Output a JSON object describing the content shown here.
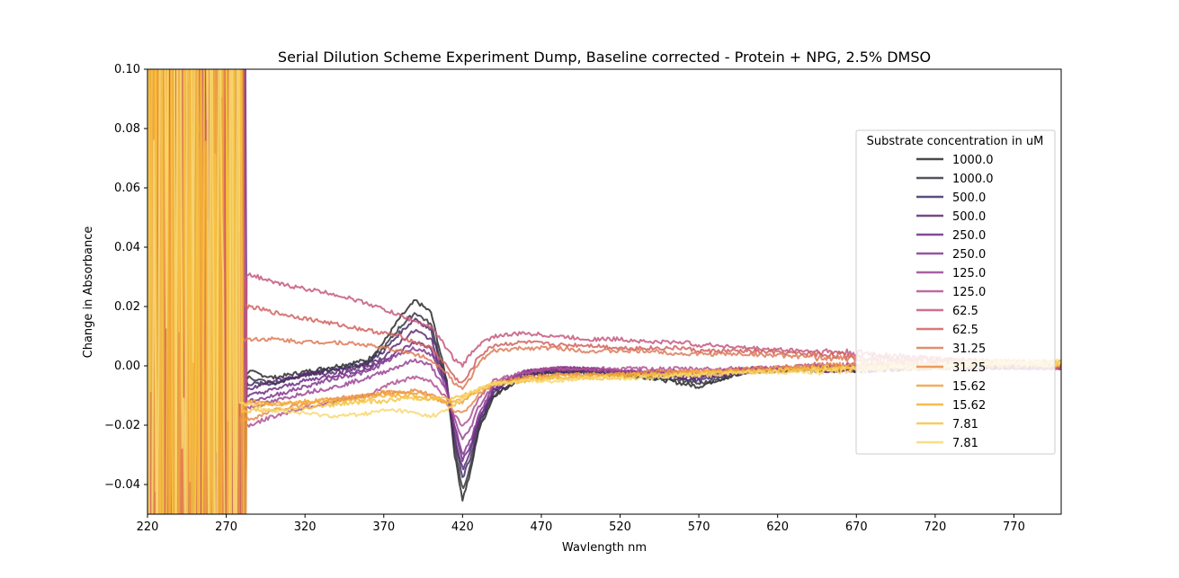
{
  "chart_data": {
    "type": "line",
    "title": "Serial Dilution Scheme Experiment Dump, Baseline corrected - Protein + NPG, 2.5% DMSO",
    "xlabel": "Wavlength nm",
    "ylabel": "Change in Absorbance",
    "xlim": [
      220,
      800
    ],
    "ylim": [
      -0.05,
      0.1
    ],
    "xticks": [
      220,
      270,
      320,
      370,
      420,
      470,
      520,
      570,
      620,
      670,
      720,
      770
    ],
    "yticks": [
      -0.04,
      -0.02,
      0.0,
      0.02,
      0.04,
      0.06,
      0.08,
      0.1
    ],
    "ytick_labels": [
      "−0.04",
      "−0.02",
      "0.00",
      "0.02",
      "0.04",
      "0.06",
      "0.08",
      "0.10"
    ],
    "legend_title": "Substrate concentration in uM",
    "legend_position": "right",
    "grid": false,
    "series": [
      {
        "name": "1000.0",
        "color": "#2a2a2a",
        "base": 0.0,
        "x": [
          285,
          300,
          320,
          340,
          360,
          370,
          380,
          390,
          400,
          410,
          415,
          420,
          425,
          430,
          440,
          460,
          480,
          500,
          520,
          540,
          560,
          570,
          580,
          600,
          640,
          680,
          720,
          760,
          800
        ],
        "y": [
          -0.002,
          -0.004,
          -0.002,
          0.0,
          0.002,
          0.008,
          0.016,
          0.022,
          0.018,
          -0.005,
          -0.03,
          -0.045,
          -0.036,
          -0.022,
          -0.01,
          -0.003,
          -0.002,
          -0.002,
          -0.003,
          -0.004,
          -0.006,
          -0.007,
          -0.005,
          -0.002,
          -0.001,
          -0.001,
          0.0,
          0.0,
          0.0
        ]
      },
      {
        "name": "1000.0",
        "color": "#3a3540",
        "base": 0.0,
        "x": [
          285,
          300,
          320,
          340,
          360,
          370,
          380,
          390,
          400,
          410,
          415,
          420,
          425,
          430,
          440,
          460,
          480,
          500,
          520,
          540,
          560,
          570,
          580,
          600,
          640,
          680,
          720,
          760,
          800
        ],
        "y": [
          -0.004,
          -0.006,
          -0.003,
          -0.001,
          0.001,
          0.006,
          0.013,
          0.018,
          0.014,
          -0.006,
          -0.028,
          -0.042,
          -0.034,
          -0.021,
          -0.01,
          -0.003,
          -0.002,
          -0.002,
          -0.003,
          -0.004,
          -0.005,
          -0.006,
          -0.005,
          -0.002,
          -0.001,
          -0.001,
          0.0,
          0.0,
          0.0
        ]
      },
      {
        "name": "500.0",
        "color": "#3e2f66",
        "base": 0.0,
        "x": [
          285,
          300,
          320,
          340,
          360,
          370,
          380,
          390,
          400,
          410,
          415,
          420,
          425,
          430,
          440,
          460,
          480,
          500,
          520,
          540,
          560,
          570,
          580,
          600,
          640,
          680,
          720,
          760,
          800
        ],
        "y": [
          -0.006,
          -0.006,
          -0.003,
          -0.001,
          0.001,
          0.005,
          0.011,
          0.016,
          0.012,
          -0.006,
          -0.025,
          -0.038,
          -0.031,
          -0.02,
          -0.009,
          -0.003,
          -0.002,
          -0.002,
          -0.003,
          -0.003,
          -0.004,
          -0.005,
          -0.004,
          -0.002,
          -0.001,
          -0.001,
          0.0,
          0.0,
          0.0
        ]
      },
      {
        "name": "500.0",
        "color": "#5a2a70",
        "base": 0.0,
        "x": [
          285,
          300,
          320,
          340,
          360,
          370,
          380,
          390,
          400,
          410,
          415,
          420,
          425,
          430,
          440,
          460,
          480,
          500,
          520,
          540,
          560,
          570,
          580,
          600,
          640,
          680,
          720,
          760,
          800
        ],
        "y": [
          -0.008,
          -0.005,
          -0.003,
          -0.002,
          0.0,
          0.003,
          0.008,
          0.012,
          0.009,
          -0.007,
          -0.024,
          -0.035,
          -0.029,
          -0.019,
          -0.008,
          -0.002,
          -0.001,
          -0.001,
          -0.002,
          -0.003,
          -0.004,
          -0.004,
          -0.003,
          -0.002,
          -0.001,
          -0.001,
          0.0,
          0.0,
          0.0
        ]
      },
      {
        "name": "250.0",
        "color": "#6c2b86",
        "base": 0.0,
        "x": [
          285,
          300,
          320,
          340,
          360,
          370,
          380,
          390,
          400,
          410,
          415,
          420,
          425,
          430,
          440,
          460,
          480,
          500,
          520,
          540,
          560,
          570,
          580,
          600,
          640,
          680,
          720,
          760,
          800
        ],
        "y": [
          -0.01,
          -0.008,
          -0.005,
          -0.003,
          -0.001,
          0.002,
          0.005,
          0.008,
          0.006,
          -0.007,
          -0.021,
          -0.032,
          -0.027,
          -0.018,
          -0.008,
          -0.002,
          -0.001,
          -0.001,
          -0.002,
          -0.002,
          -0.003,
          -0.003,
          -0.003,
          -0.002,
          -0.001,
          -0.001,
          0.0,
          0.0,
          0.0
        ]
      },
      {
        "name": "250.0",
        "color": "#83378f",
        "base": 0.0,
        "x": [
          285,
          300,
          320,
          340,
          360,
          370,
          380,
          390,
          400,
          410,
          415,
          420,
          425,
          430,
          440,
          460,
          480,
          500,
          520,
          540,
          560,
          570,
          580,
          600,
          640,
          680,
          720,
          760,
          800
        ],
        "y": [
          -0.012,
          -0.01,
          -0.007,
          -0.004,
          -0.002,
          0.001,
          0.004,
          0.006,
          0.004,
          -0.008,
          -0.02,
          -0.03,
          -0.025,
          -0.017,
          -0.007,
          -0.002,
          -0.001,
          -0.001,
          -0.002,
          -0.002,
          -0.003,
          -0.003,
          -0.002,
          -0.001,
          -0.001,
          0.0,
          0.0,
          0.0,
          0.0
        ]
      },
      {
        "name": "125.0",
        "color": "#9a4494",
        "base": 0.0,
        "x": [
          285,
          300,
          320,
          340,
          360,
          370,
          380,
          390,
          400,
          410,
          415,
          420,
          425,
          430,
          440,
          460,
          480,
          500,
          520,
          540,
          560,
          570,
          580,
          600,
          640,
          680,
          720,
          760,
          800
        ],
        "y": [
          -0.014,
          -0.012,
          -0.009,
          -0.007,
          -0.004,
          -0.002,
          0.0,
          0.002,
          0.0,
          -0.009,
          -0.018,
          -0.025,
          -0.021,
          -0.014,
          -0.006,
          -0.002,
          -0.001,
          -0.001,
          -0.002,
          -0.002,
          -0.002,
          -0.002,
          -0.002,
          -0.001,
          -0.001,
          0.0,
          0.0,
          0.0,
          0.0
        ]
      },
      {
        "name": "125.0",
        "color": "#b15294",
        "base": 0.0,
        "x": [
          285,
          300,
          320,
          340,
          360,
          370,
          380,
          390,
          400,
          410,
          415,
          420,
          425,
          430,
          440,
          460,
          480,
          500,
          520,
          540,
          560,
          570,
          580,
          600,
          640,
          680,
          720,
          760,
          800
        ],
        "y": [
          -0.02,
          -0.017,
          -0.014,
          -0.012,
          -0.01,
          -0.007,
          -0.005,
          -0.004,
          -0.005,
          -0.011,
          -0.017,
          -0.02,
          -0.017,
          -0.011,
          -0.005,
          -0.002,
          -0.001,
          -0.001,
          -0.001,
          -0.001,
          -0.001,
          -0.001,
          -0.001,
          -0.001,
          0.0,
          0.0,
          0.0,
          0.0,
          0.0
        ]
      },
      {
        "name": "62.5",
        "color": "#c4587e",
        "base": 0.0,
        "x": [
          285,
          300,
          320,
          340,
          360,
          370,
          380,
          390,
          400,
          410,
          415,
          420,
          425,
          430,
          440,
          460,
          480,
          500,
          520,
          540,
          560,
          570,
          580,
          600,
          640,
          680,
          720,
          760,
          800
        ],
        "y": [
          0.031,
          0.028,
          0.026,
          0.024,
          0.021,
          0.019,
          0.017,
          0.015,
          0.013,
          0.006,
          0.002,
          0.0,
          0.004,
          0.007,
          0.01,
          0.011,
          0.01,
          0.009,
          0.009,
          0.008,
          0.008,
          0.007,
          0.007,
          0.006,
          0.005,
          0.004,
          0.002,
          0.001,
          0.0
        ]
      },
      {
        "name": "62.5",
        "color": "#d0625f",
        "base": 0.0,
        "x": [
          285,
          300,
          320,
          340,
          360,
          370,
          380,
          390,
          400,
          410,
          415,
          420,
          425,
          430,
          440,
          460,
          480,
          500,
          520,
          540,
          560,
          570,
          580,
          600,
          640,
          680,
          720,
          760,
          800
        ],
        "y": [
          0.02,
          0.018,
          0.016,
          0.014,
          0.012,
          0.011,
          0.01,
          0.008,
          0.006,
          0.0,
          -0.004,
          -0.006,
          -0.002,
          0.003,
          0.007,
          0.008,
          0.007,
          0.007,
          0.006,
          0.006,
          0.006,
          0.005,
          0.005,
          0.005,
          0.004,
          0.003,
          0.002,
          0.001,
          0.0
        ]
      },
      {
        "name": "31.25",
        "color": "#dd7a58",
        "base": 0.0,
        "x": [
          285,
          300,
          320,
          340,
          360,
          370,
          380,
          390,
          400,
          410,
          415,
          420,
          425,
          430,
          440,
          460,
          480,
          500,
          520,
          540,
          560,
          570,
          580,
          600,
          640,
          680,
          720,
          760,
          800
        ],
        "y": [
          0.009,
          0.009,
          0.008,
          0.008,
          0.007,
          0.006,
          0.005,
          0.004,
          0.002,
          -0.002,
          -0.006,
          -0.008,
          -0.004,
          0.001,
          0.005,
          0.006,
          0.006,
          0.005,
          0.005,
          0.005,
          0.004,
          0.004,
          0.004,
          0.004,
          0.003,
          0.002,
          0.002,
          0.001,
          0.0
        ]
      },
      {
        "name": "31.25",
        "color": "#e88a4a",
        "base": 0.0,
        "x": [
          285,
          300,
          320,
          340,
          360,
          370,
          380,
          390,
          400,
          410,
          415,
          420,
          425,
          430,
          440,
          460,
          480,
          500,
          520,
          540,
          560,
          570,
          580,
          600,
          640,
          680,
          720,
          760,
          800
        ],
        "y": [
          -0.018,
          -0.015,
          -0.013,
          -0.011,
          -0.01,
          -0.009,
          -0.009,
          -0.008,
          -0.01,
          -0.013,
          -0.015,
          -0.016,
          -0.013,
          -0.01,
          -0.006,
          -0.004,
          -0.003,
          -0.003,
          -0.003,
          -0.002,
          -0.002,
          -0.002,
          -0.002,
          -0.001,
          0.0,
          0.0,
          0.001,
          0.001,
          0.001
        ]
      },
      {
        "name": "15.62",
        "color": "#f0a040",
        "base": 0.0,
        "x": [
          285,
          300,
          320,
          340,
          360,
          370,
          380,
          390,
          400,
          410,
          415,
          420,
          425,
          430,
          440,
          460,
          480,
          500,
          520,
          540,
          560,
          570,
          580,
          600,
          640,
          680,
          720,
          760,
          800
        ],
        "y": [
          -0.012,
          -0.013,
          -0.012,
          -0.011,
          -0.01,
          -0.009,
          -0.009,
          -0.009,
          -0.01,
          -0.012,
          -0.013,
          -0.012,
          -0.01,
          -0.008,
          -0.006,
          -0.004,
          -0.003,
          -0.003,
          -0.003,
          -0.003,
          -0.002,
          -0.002,
          -0.002,
          -0.002,
          -0.001,
          0.0,
          0.0,
          0.001,
          0.001
        ]
      },
      {
        "name": "15.62",
        "color": "#f5b032",
        "base": 0.0,
        "x": [
          285,
          300,
          320,
          340,
          360,
          370,
          380,
          390,
          400,
          410,
          415,
          420,
          425,
          430,
          440,
          460,
          480,
          500,
          520,
          540,
          560,
          570,
          580,
          600,
          640,
          680,
          720,
          760,
          800
        ],
        "y": [
          -0.013,
          -0.013,
          -0.012,
          -0.012,
          -0.011,
          -0.01,
          -0.01,
          -0.01,
          -0.011,
          -0.012,
          -0.012,
          -0.011,
          -0.01,
          -0.008,
          -0.006,
          -0.005,
          -0.004,
          -0.004,
          -0.003,
          -0.003,
          -0.003,
          -0.002,
          -0.002,
          -0.002,
          -0.001,
          -0.001,
          0.0,
          0.0,
          0.001
        ]
      },
      {
        "name": "7.81",
        "color": "#f6c445",
        "base": 0.0,
        "x": [
          285,
          300,
          320,
          340,
          360,
          370,
          380,
          390,
          400,
          410,
          415,
          420,
          425,
          430,
          440,
          460,
          480,
          500,
          520,
          540,
          560,
          570,
          580,
          600,
          640,
          680,
          720,
          760,
          800
        ],
        "y": [
          -0.015,
          -0.015,
          -0.014,
          -0.013,
          -0.012,
          -0.012,
          -0.011,
          -0.011,
          -0.011,
          -0.011,
          -0.011,
          -0.01,
          -0.009,
          -0.008,
          -0.006,
          -0.005,
          -0.004,
          -0.004,
          -0.004,
          -0.003,
          -0.003,
          -0.003,
          -0.002,
          -0.002,
          -0.001,
          0.0,
          0.0,
          0.001,
          0.001
        ]
      },
      {
        "name": "7.81",
        "color": "#f7d873",
        "base": 0.0,
        "x": [
          285,
          300,
          320,
          340,
          360,
          370,
          380,
          390,
          400,
          410,
          415,
          420,
          425,
          430,
          440,
          460,
          480,
          500,
          520,
          540,
          560,
          570,
          580,
          600,
          640,
          680,
          720,
          760,
          800
        ],
        "y": [
          -0.013,
          -0.015,
          -0.016,
          -0.017,
          -0.016,
          -0.015,
          -0.015,
          -0.016,
          -0.017,
          -0.015,
          -0.013,
          -0.011,
          -0.009,
          -0.008,
          -0.006,
          -0.005,
          -0.005,
          -0.004,
          -0.004,
          -0.004,
          -0.003,
          -0.003,
          -0.003,
          -0.002,
          -0.002,
          -0.001,
          0.0,
          0.001,
          0.001
        ]
      }
    ]
  }
}
